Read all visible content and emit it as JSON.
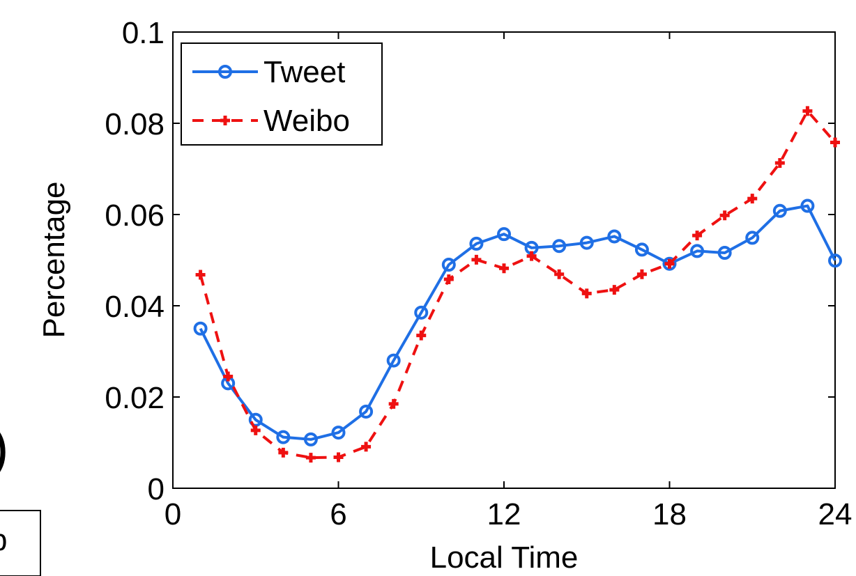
{
  "chart_data": {
    "type": "line",
    "title": "",
    "xlabel": "Local Time",
    "ylabel": "Percentage",
    "xlim": [
      0,
      24
    ],
    "ylim": [
      0,
      0.1
    ],
    "xticks": [
      0,
      6,
      12,
      18,
      24
    ],
    "xtick_labels": [
      "0",
      "6",
      "12",
      "18",
      "24"
    ],
    "yticks": [
      0,
      0.02,
      0.04,
      0.06,
      0.08,
      0.1
    ],
    "ytick_labels": [
      "0",
      "0.02",
      "0.04",
      "0.06",
      "0.08",
      "0.1"
    ],
    "grid": false,
    "legend": "top-left",
    "x": [
      1,
      2,
      3,
      4,
      5,
      6,
      7,
      8,
      9,
      10,
      11,
      12,
      13,
      14,
      15,
      16,
      17,
      18,
      19,
      20,
      21,
      22,
      23,
      24
    ],
    "series": [
      {
        "name": "Tweet",
        "color": "#1f6fe5",
        "marker": "circle",
        "line": "solid",
        "values": [
          0.035,
          0.023,
          0.015,
          0.0112,
          0.0107,
          0.0122,
          0.0168,
          0.028,
          0.0385,
          0.049,
          0.0536,
          0.0557,
          0.0527,
          0.0531,
          0.0538,
          0.0552,
          0.0523,
          0.0492,
          0.052,
          0.0516,
          0.0549,
          0.0608,
          0.0619,
          0.0499
        ]
      },
      {
        "name": "Weibo",
        "color": "#ee1111",
        "marker": "plus",
        "line": "dashed",
        "values": [
          0.0468,
          0.0245,
          0.0127,
          0.0078,
          0.0067,
          0.0068,
          0.0091,
          0.0185,
          0.0335,
          0.0458,
          0.0501,
          0.0482,
          0.0509,
          0.0469,
          0.0427,
          0.0435,
          0.0469,
          0.0492,
          0.0554,
          0.0598,
          0.0635,
          0.0713,
          0.0827,
          0.0758
        ]
      }
    ]
  },
  "cropped_fragment": {
    "paren": ")",
    "box_text": "b"
  }
}
